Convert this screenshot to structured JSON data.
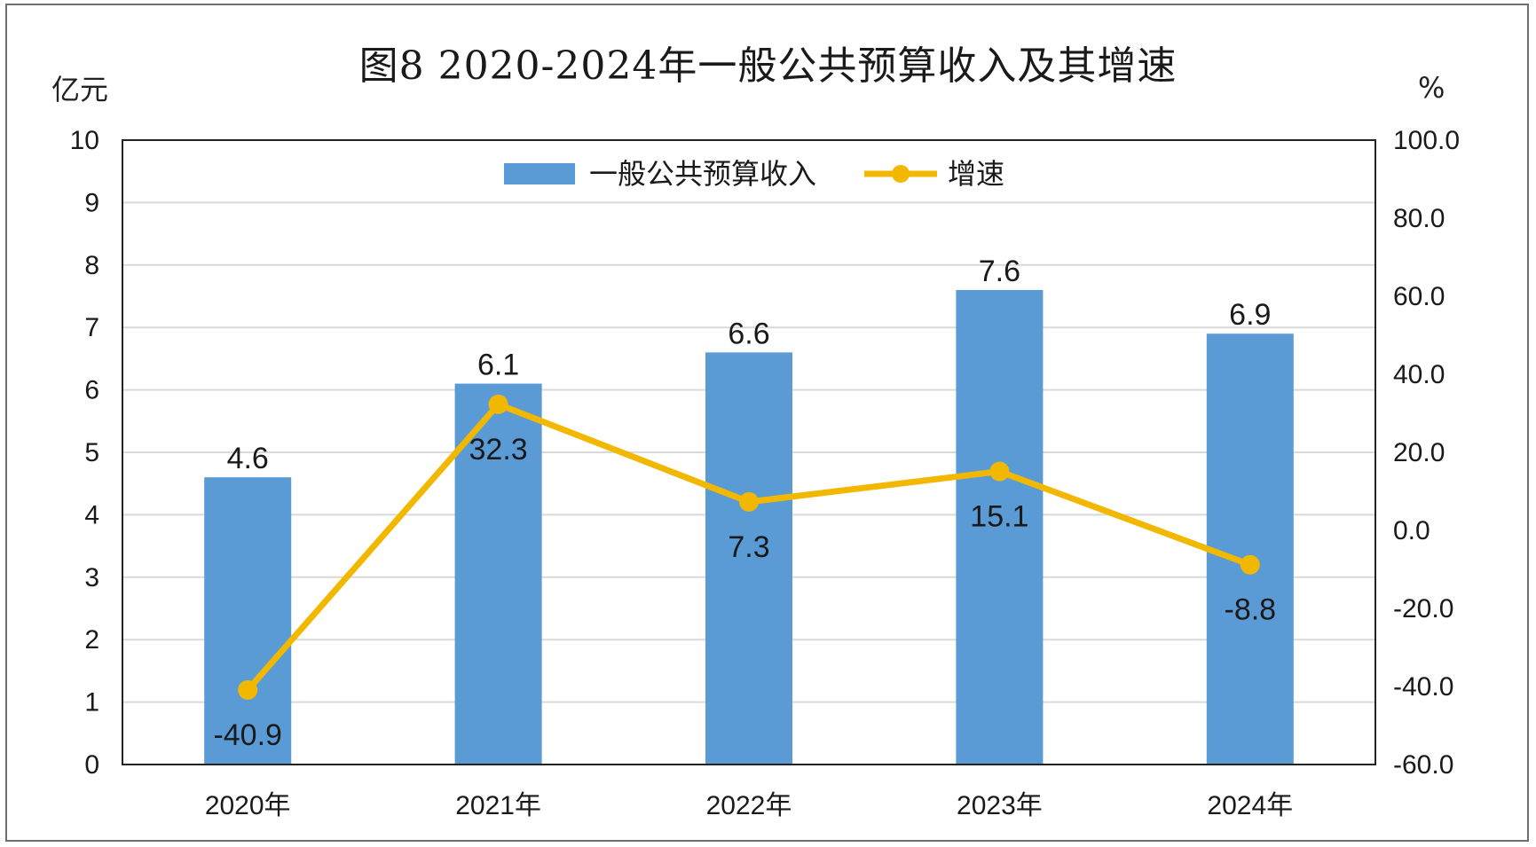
{
  "chart_data": {
    "type": "bar+line",
    "title": "图8    2020-2024年一般公共预算收入及其增速",
    "ylabel_left": "亿元",
    "ylabel_right": "%",
    "categories": [
      "2020年",
      "2021年",
      "2022年",
      "2023年",
      "2024年"
    ],
    "series": [
      {
        "name": "一般公共预算收入",
        "type": "bar",
        "axis": "left",
        "color": "#5b9bd5",
        "values": [
          4.6,
          6.1,
          6.6,
          7.6,
          6.9
        ]
      },
      {
        "name": "增速",
        "type": "line",
        "axis": "right",
        "color": "#f2b800",
        "values": [
          -40.9,
          32.3,
          7.3,
          15.1,
          -8.8
        ]
      }
    ],
    "ylim_left": [
      0,
      10
    ],
    "ylim_right": [
      -60,
      100
    ],
    "yticks_left": [
      "0",
      "1",
      "2",
      "3",
      "4",
      "5",
      "6",
      "7",
      "8",
      "9",
      "10"
    ],
    "yticks_right": [
      "-60.0",
      "-40.0",
      "-20.0",
      "0.0",
      "20.0",
      "40.0",
      "60.0",
      "80.0",
      "100.0"
    ],
    "grid": true,
    "legend_position": "top-center"
  }
}
